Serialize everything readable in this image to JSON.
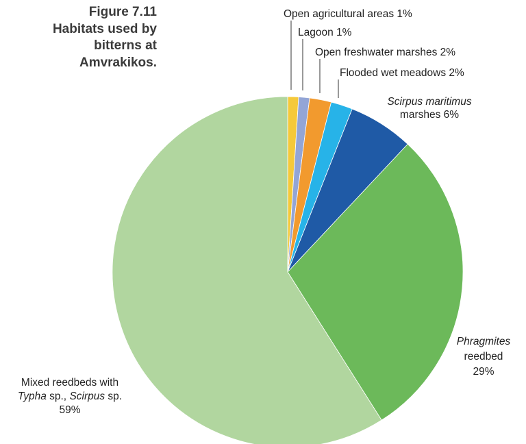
{
  "caption": {
    "lines": [
      "Figure 7.11",
      "Habitats used by",
      "bitterns at",
      "Amvrakikos."
    ]
  },
  "chart_data": {
    "type": "pie",
    "title": "",
    "slices": [
      {
        "id": "open-agricultural",
        "value": 1,
        "color": "#f5c93a",
        "label_runs": [
          [
            {
              "t": "Open agricultural areas 1%"
            }
          ]
        ]
      },
      {
        "id": "lagoon",
        "value": 1,
        "color": "#93a5d6",
        "label_runs": [
          [
            {
              "t": "Lagoon 1%"
            }
          ]
        ]
      },
      {
        "id": "open-freshwater",
        "value": 2,
        "color": "#f29a2e",
        "label_runs": [
          [
            {
              "t": "Open freshwater marshes 2%"
            }
          ]
        ]
      },
      {
        "id": "flooded-wet-meadows",
        "value": 2,
        "color": "#27b3e8",
        "label_runs": [
          [
            {
              "t": "Flooded wet meadows 2%"
            }
          ]
        ]
      },
      {
        "id": "scirpus-maritimus",
        "value": 6,
        "color": "#1f5aa6",
        "label_runs": [
          [
            {
              "t": "Scirpus maritimus",
              "i": true
            }
          ],
          [
            {
              "t": "marshes 6%"
            }
          ]
        ]
      },
      {
        "id": "phragmites",
        "value": 29,
        "color": "#6cb95a",
        "label_runs": [
          [
            {
              "t": "Phragmites",
              "i": true
            }
          ],
          [
            {
              "t": "reedbed"
            }
          ],
          [
            {
              "t": "29%"
            }
          ]
        ]
      },
      {
        "id": "mixed-reedbeds",
        "value": 59,
        "color": "#b1d69f",
        "label_runs": [
          [
            {
              "t": "Mixed reedbeds with"
            }
          ],
          [
            {
              "t": "Typha",
              "i": true
            },
            {
              "t": " sp., "
            },
            {
              "t": "Scirpus",
              "i": true
            },
            {
              "t": " sp."
            }
          ],
          [
            {
              "t": "59%"
            }
          ]
        ]
      }
    ]
  }
}
